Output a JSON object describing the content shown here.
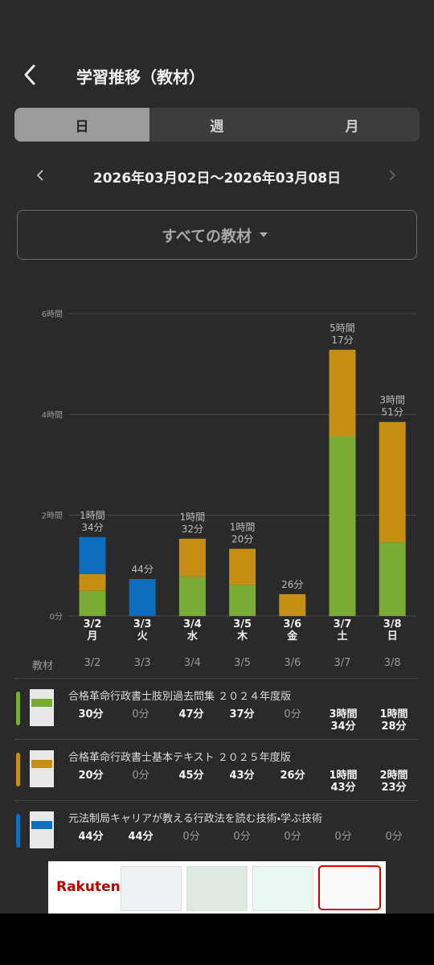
{
  "header": {
    "title": "学習推移（教材）"
  },
  "tabs": [
    "日",
    "週",
    "月"
  ],
  "selected_tab": 0,
  "date_range": "2026年03月02日〜2026年03月08日",
  "filter": "すべての教材",
  "chart_data": {
    "type": "bar",
    "stacked": true,
    "categories": [
      "3/2",
      "3/3",
      "3/4",
      "3/5",
      "3/6",
      "3/7",
      "3/8"
    ],
    "weekdays": [
      "月",
      "火",
      "水",
      "木",
      "金",
      "土",
      "日"
    ],
    "ylim": [
      0,
      360
    ],
    "yticks": [
      {
        "value": 0,
        "label": "0分"
      },
      {
        "value": 120,
        "label": "2時間"
      },
      {
        "value": 240,
        "label": "4時間"
      },
      {
        "value": 360,
        "label": "6時間"
      }
    ],
    "grid": true,
    "totals": [
      94,
      44,
      92,
      80,
      26,
      317,
      231
    ],
    "total_labels": [
      [
        "1時間",
        "34分"
      ],
      [
        "44分"
      ],
      [
        "1時間",
        "32分"
      ],
      [
        "1時間",
        "20分"
      ],
      [
        "26分"
      ],
      [
        "5時間",
        "17分"
      ],
      [
        "3時間",
        "51分"
      ]
    ],
    "series": [
      {
        "name": "合格革命行政書士肢別過去問集 ２０２４年度版",
        "color": "#7aab35",
        "values": [
          30,
          0,
          47,
          37,
          0,
          214,
          88
        ],
        "value_labels": [
          "30分",
          "0分",
          "47分",
          "37分",
          "0分",
          "3時間34分",
          "1時間28分"
        ]
      },
      {
        "name": "合格革命行政書士基本テキスト ２０２５年度版",
        "color": "#c68f14",
        "values": [
          20,
          0,
          45,
          43,
          26,
          103,
          143
        ],
        "value_labels": [
          "20分",
          "0分",
          "45分",
          "43分",
          "26分",
          "1時間43分",
          "2時間23分"
        ]
      },
      {
        "name": "元法制局キャリアが教える行政法を読む技術・学ぶ技術",
        "color": "#0d6ec0",
        "values": [
          44,
          44,
          0,
          0,
          0,
          0,
          0
        ],
        "value_labels": [
          "44分",
          "44分",
          "0分",
          "0分",
          "0分",
          "0分",
          "0分"
        ]
      }
    ]
  },
  "table_header": "教材",
  "ad": {
    "brand": "Rakuten"
  }
}
